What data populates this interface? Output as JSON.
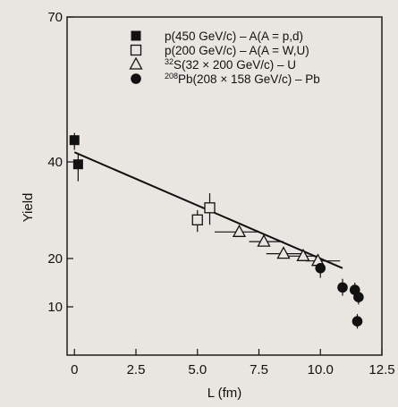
{
  "chart_data": {
    "type": "scatter",
    "xlabel": "L (fm)",
    "ylabel": "Yield",
    "xlim": [
      -0.3,
      12.5
    ],
    "ylim": [
      0,
      70
    ],
    "xticks": [
      "0",
      "2.5",
      "5.0",
      "7.5",
      "10.0",
      "12.5"
    ],
    "yticks": [
      "10",
      "20",
      "40",
      "70"
    ],
    "grid": false,
    "legend_position": "top-right",
    "colors": {
      "marker": "#111111",
      "background": "#e9e6e1"
    },
    "legend": [
      {
        "symbol": "filled-square",
        "label": "p(450 GeV/c) – A(A = p,d)"
      },
      {
        "symbol": "open-square",
        "label": "p(200 GeV/c) – A(A = W,U)"
      },
      {
        "symbol": "open-triangle",
        "label_sup": "32",
        "label": "S(32 × 200 GeV/c) – U"
      },
      {
        "symbol": "filled-circle",
        "label_sup": "208",
        "label": "Pb(208 × 158 GeV/c) – Pb"
      }
    ],
    "series": [
      {
        "name": "p(450 GeV/c) – A(A = p,d)",
        "marker": "filled-square",
        "points": [
          {
            "x": 0.0,
            "y": 44.5,
            "ylo": 42.5,
            "yhi": 46.0
          },
          {
            "x": 0.15,
            "y": 39.5,
            "ylo": 36.0,
            "yhi": 41.5
          }
        ]
      },
      {
        "name": "p(200 GeV/c) – A(A = W,U)",
        "marker": "open-square",
        "points": [
          {
            "x": 5.0,
            "y": 28.0,
            "ylo": 25.5,
            "yhi": 30.0
          },
          {
            "x": 5.5,
            "y": 30.5,
            "ylo": 27.0,
            "yhi": 33.5
          }
        ]
      },
      {
        "name": "S(32 × 200 GeV/c) – U",
        "marker": "open-triangle",
        "points": [
          {
            "x": 6.7,
            "y": 25.5,
            "xlo": 5.7,
            "xhi": 7.5
          },
          {
            "x": 7.7,
            "y": 23.5,
            "xlo": 7.1,
            "xhi": 8.5
          },
          {
            "x": 8.5,
            "y": 21.0,
            "xlo": 7.8,
            "xhi": 9.2
          },
          {
            "x": 9.3,
            "y": 20.5,
            "xlo": 8.6,
            "xhi": 9.9
          },
          {
            "x": 9.9,
            "y": 19.5,
            "xlo": 9.4,
            "xhi": 10.8
          }
        ]
      },
      {
        "name": "Pb(208 × 158 GeV/c) – Pb",
        "marker": "filled-circle",
        "points": [
          {
            "x": 10.0,
            "y": 18.0,
            "ylo": 16.0,
            "yhi": 20.0
          },
          {
            "x": 10.9,
            "y": 14.0,
            "ylo": 12.3,
            "yhi": 15.8
          },
          {
            "x": 11.4,
            "y": 13.5,
            "ylo": 11.8,
            "yhi": 15.0
          },
          {
            "x": 11.55,
            "y": 12.0,
            "ylo": 10.5,
            "yhi": 13.5
          },
          {
            "x": 11.5,
            "y": 7.0,
            "ylo": 5.5,
            "yhi": 8.5
          }
        ]
      }
    ],
    "fit_line": {
      "x": [
        0.0,
        10.9
      ],
      "y": [
        42.0,
        18.0
      ]
    }
  }
}
